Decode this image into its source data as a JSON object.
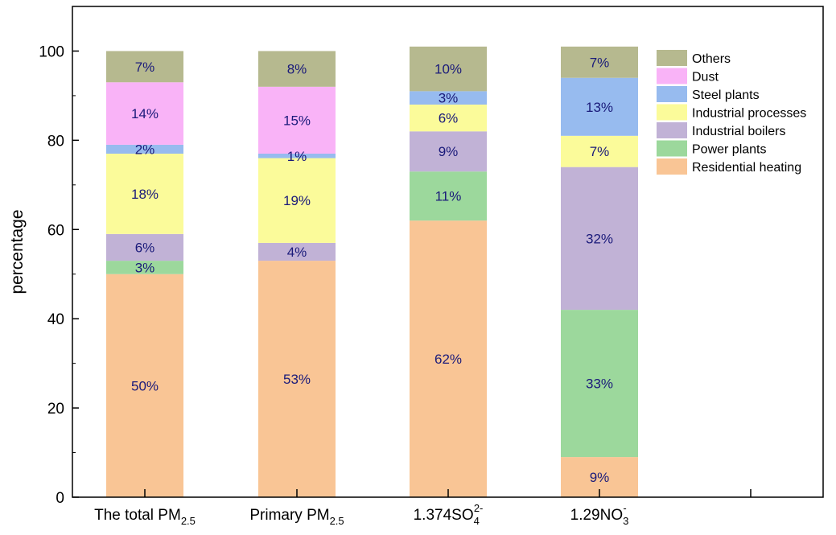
{
  "chart_data": {
    "type": "bar",
    "stacked": true,
    "ylabel": "percentage",
    "xlabel": "",
    "ylim": [
      0,
      110
    ],
    "yticks": [
      0,
      20,
      40,
      60,
      80,
      100
    ],
    "categories": [
      {
        "label": "The total PM",
        "sub": "2.5",
        "sup": ""
      },
      {
        "label": "Primary PM",
        "sub": "2.5",
        "sup": ""
      },
      {
        "label": "1.374SO",
        "sub": "4",
        "sup": "2-"
      },
      {
        "label": "1.29NO",
        "sub": "3",
        "sup": "-"
      }
    ],
    "series": [
      {
        "name": "Residential heating",
        "color": "#f9c595",
        "values": [
          50,
          53,
          62,
          9
        ]
      },
      {
        "name": "Power plants",
        "color": "#9cd89c",
        "values": [
          3,
          0,
          11,
          33
        ]
      },
      {
        "name": "Industrial boilers",
        "color": "#c1b2d6",
        "values": [
          6,
          4,
          9,
          32
        ]
      },
      {
        "name": "Industrial processes",
        "color": "#fbfb9a",
        "values": [
          18,
          19,
          6,
          7
        ]
      },
      {
        "name": "Steel plants",
        "color": "#97bbef",
        "values": [
          2,
          1,
          3,
          13
        ]
      },
      {
        "name": "Dust",
        "color": "#f9b3f7",
        "values": [
          14,
          15,
          0,
          0
        ]
      },
      {
        "name": "Others",
        "color": "#b6b98f",
        "values": [
          7,
          8,
          10,
          7
        ]
      }
    ],
    "segment_labels": [
      [
        "50%",
        "3%",
        "6%",
        "18%",
        "2%",
        "14%",
        "7%"
      ],
      [
        "53%",
        "",
        "4%",
        "19%",
        "1%",
        "15%",
        "8%"
      ],
      [
        "62%",
        "11%",
        "9%",
        "6%",
        "3%",
        "",
        "10%"
      ],
      [
        "9%",
        "33%",
        "32%",
        "7%",
        "13%",
        "",
        "7%"
      ]
    ],
    "legend_order": [
      "Others",
      "Dust",
      "Steel plants",
      "Industrial processes",
      "Industrial boilers",
      "Power plants",
      "Residential heating"
    ],
    "legend_position": "top-right",
    "grid": false
  }
}
